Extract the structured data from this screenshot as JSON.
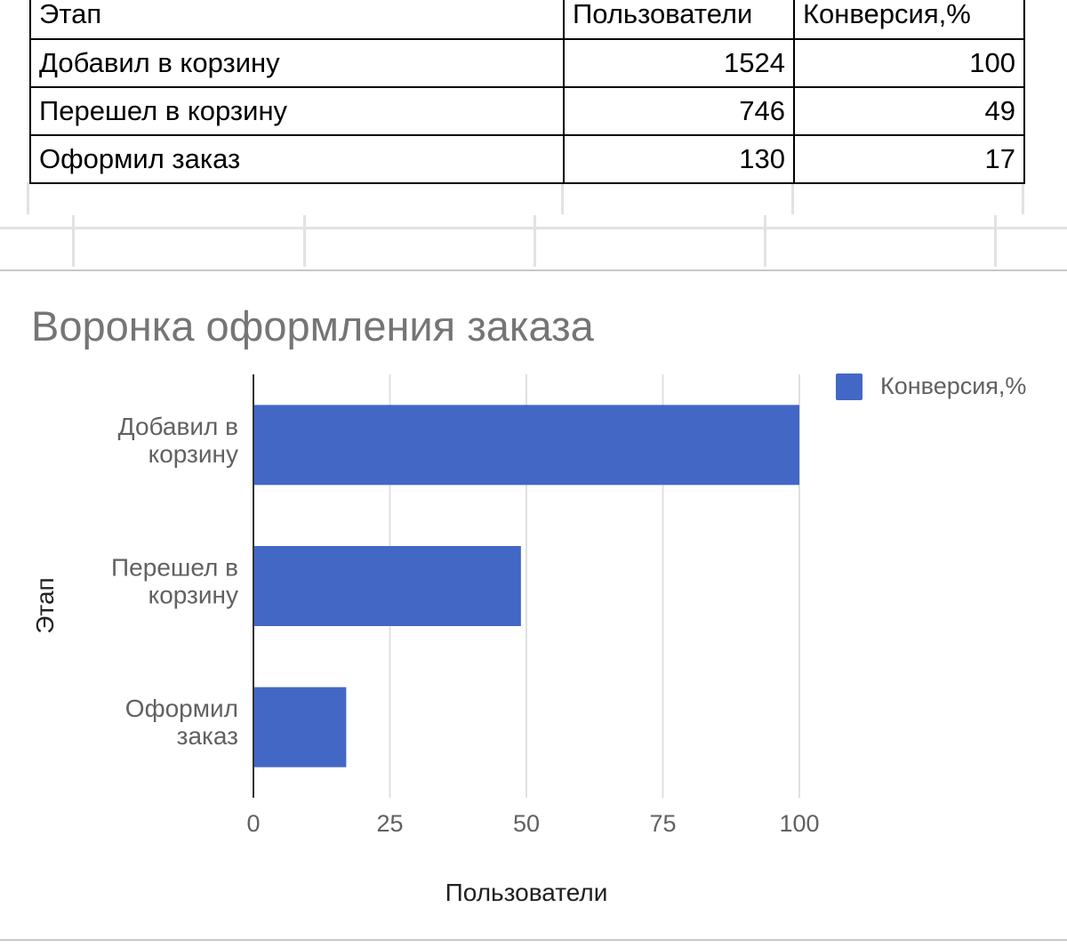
{
  "table": {
    "headers": [
      "Этап",
      "Пользователи",
      "Конверсия,%"
    ],
    "rows": [
      [
        "Добавил в корзину",
        "1524",
        "100"
      ],
      [
        "Перешел в корзину",
        "746",
        "49"
      ],
      [
        "Оформил заказ",
        "130",
        "17"
      ]
    ]
  },
  "chart_data": {
    "type": "bar",
    "orientation": "horizontal",
    "title": "Воронка оформления заказа",
    "categories": [
      "Добавил в корзину",
      "Перешел в корзину",
      "Оформил заказ"
    ],
    "category_label_lines": [
      [
        "Добавил в",
        "корзину"
      ],
      [
        "Перешел в",
        "корзину"
      ],
      [
        "Оформил",
        "заказ"
      ]
    ],
    "series": [
      {
        "name": "Конверсия,%",
        "values": [
          100,
          49,
          17
        ],
        "color": "#4267c5"
      }
    ],
    "xlabel": "Пользователи",
    "ylabel": "Этап",
    "xlim": [
      0,
      100
    ],
    "xticks": [
      "0",
      "25",
      "50",
      "75",
      "100"
    ],
    "grid": true,
    "legend_position": "top-right"
  },
  "colors": {
    "bar": "#4267c5",
    "title_text": "#757575",
    "axis_text": "#616161",
    "gridline": "#e0e0e0"
  }
}
